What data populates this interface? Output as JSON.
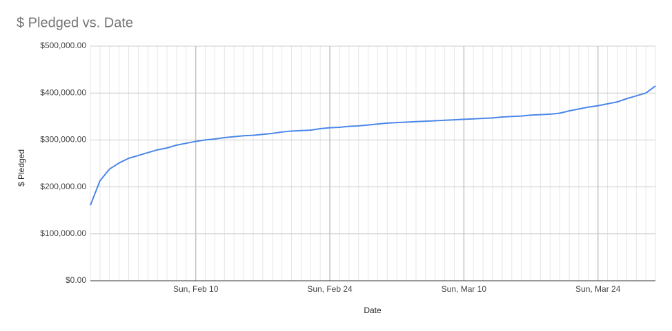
{
  "chart_data": {
    "type": "line",
    "title": "$ Pledged vs. Date",
    "x_label": "Date",
    "y_label": "$ Pledged",
    "x": [
      "Jan 30",
      "Jan 31",
      "Feb 1",
      "Feb 2",
      "Feb 3",
      "Feb 4",
      "Feb 5",
      "Feb 6",
      "Feb 7",
      "Feb 8",
      "Feb 9",
      "Feb 10",
      "Feb 11",
      "Feb 12",
      "Feb 13",
      "Feb 14",
      "Feb 15",
      "Feb 16",
      "Feb 17",
      "Feb 18",
      "Feb 19",
      "Feb 20",
      "Feb 21",
      "Feb 22",
      "Feb 23",
      "Feb 24",
      "Feb 25",
      "Feb 26",
      "Feb 27",
      "Feb 28",
      "Mar 1",
      "Mar 2",
      "Mar 3",
      "Mar 4",
      "Mar 5",
      "Mar 6",
      "Mar 7",
      "Mar 8",
      "Mar 9",
      "Mar 10",
      "Mar 11",
      "Mar 12",
      "Mar 13",
      "Mar 14",
      "Mar 15",
      "Mar 16",
      "Mar 17",
      "Mar 18",
      "Mar 19",
      "Mar 20",
      "Mar 21",
      "Mar 22",
      "Mar 23",
      "Mar 24",
      "Mar 25",
      "Mar 26",
      "Mar 27",
      "Mar 28",
      "Mar 29",
      "Mar 30"
    ],
    "series": [
      {
        "name": "$ Pledged",
        "color": "#4a86e8",
        "values": [
          161000,
          213000,
          238000,
          251000,
          261000,
          267000,
          273000,
          279000,
          283000,
          289000,
          293000,
          297000,
          300000,
          302000,
          305000,
          307000,
          309000,
          310000,
          312000,
          314000,
          317000,
          319000,
          320000,
          321000,
          324000,
          326000,
          327000,
          329000,
          330000,
          332000,
          334000,
          336000,
          337000,
          338000,
          339000,
          340000,
          341000,
          342000,
          343000,
          344000,
          345000,
          346000,
          347000,
          349000,
          350000,
          351000,
          353000,
          354000,
          355000,
          357000,
          362000,
          366000,
          370000,
          373000,
          377000,
          381000,
          388000,
          394000,
          400000,
          415000
        ]
      }
    ],
    "xlim": [
      "Jan 30",
      "Mar 30"
    ],
    "xticks": [
      {
        "value": "Feb 10",
        "label": "Sun, Feb 10"
      },
      {
        "value": "Feb 24",
        "label": "Sun, Feb 24"
      },
      {
        "value": "Mar 10",
        "label": "Sun, Mar 10"
      },
      {
        "value": "Mar 24",
        "label": "Sun, Mar 24"
      }
    ],
    "ylim": [
      0,
      500000
    ],
    "yticks": [
      {
        "value": 0,
        "label": "$0.00"
      },
      {
        "value": 100000,
        "label": "$100,000.00"
      },
      {
        "value": 200000,
        "label": "$200,000.00"
      },
      {
        "value": 300000,
        "label": "$300,000.00"
      },
      {
        "value": 400000,
        "label": "$400,000.00"
      },
      {
        "value": 500000,
        "label": "$500,000.00"
      }
    ],
    "grid": true
  }
}
